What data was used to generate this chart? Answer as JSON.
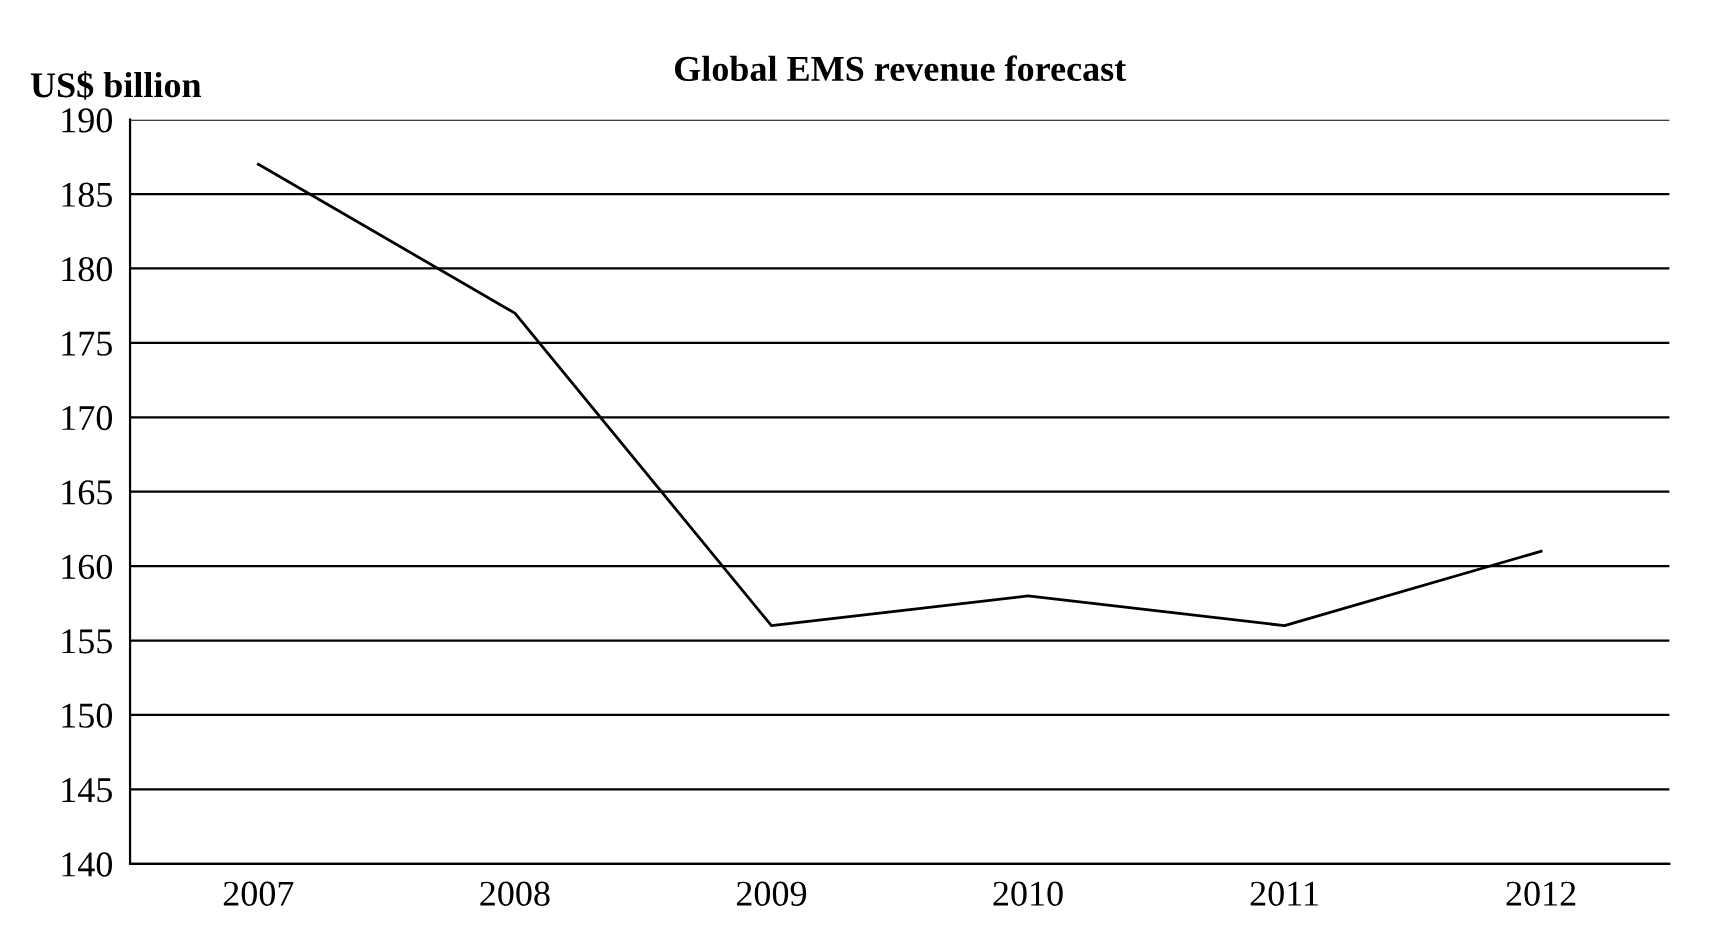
{
  "chart_data": {
    "type": "line",
    "title": "Global EMS revenue forecast",
    "ylabel": "US$ billion",
    "categories": [
      "2007",
      "2008",
      "2009",
      "2010",
      "2011",
      "2012"
    ],
    "series": [
      {
        "color": "#000000",
        "values": [
          187,
          177,
          156,
          158,
          156,
          161
        ]
      }
    ],
    "ylim": [
      140,
      190
    ],
    "yticks": [
      140,
      145,
      150,
      155,
      160,
      165,
      170,
      175,
      180,
      185,
      190
    ],
    "grid": "y",
    "legend": false,
    "marker": "none",
    "line_style": "solid"
  }
}
